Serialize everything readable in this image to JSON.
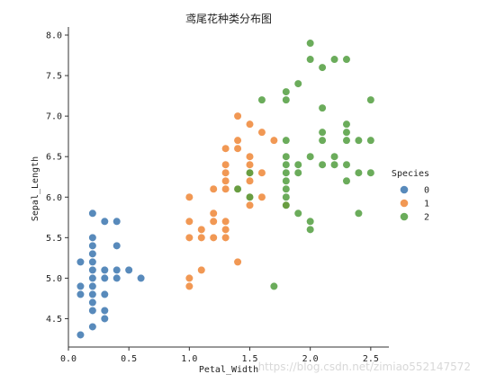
{
  "chart_data": {
    "type": "scatter",
    "title": "鸢尾花种类分布图",
    "xlabel": "Petal_Width",
    "ylabel": "Sepal_Length",
    "xlim": [
      0.0,
      2.65
    ],
    "ylim": [
      4.15,
      8.1
    ],
    "x_ticks": [
      "0.0",
      "0.5",
      "1.0",
      "1.5",
      "2.0",
      "2.5"
    ],
    "y_ticks": [
      "4.5",
      "5.0",
      "5.5",
      "6.0",
      "6.5",
      "7.0",
      "7.5",
      "8.0"
    ],
    "grid": false,
    "legend": {
      "title": "Species",
      "placement": "right"
    },
    "series": [
      {
        "name": "0",
        "color": "#3b75af",
        "points": [
          [
            0.1,
            4.3
          ],
          [
            0.1,
            4.8
          ],
          [
            0.1,
            4.9
          ],
          [
            0.1,
            5.2
          ],
          [
            0.2,
            4.4
          ],
          [
            0.2,
            4.6
          ],
          [
            0.2,
            4.7
          ],
          [
            0.2,
            4.8
          ],
          [
            0.2,
            4.9
          ],
          [
            0.2,
            5.0
          ],
          [
            0.2,
            5.1
          ],
          [
            0.2,
            5.2
          ],
          [
            0.2,
            5.3
          ],
          [
            0.2,
            5.4
          ],
          [
            0.2,
            5.5
          ],
          [
            0.2,
            5.8
          ],
          [
            0.3,
            4.5
          ],
          [
            0.3,
            4.6
          ],
          [
            0.3,
            4.8
          ],
          [
            0.3,
            5.0
          ],
          [
            0.3,
            5.1
          ],
          [
            0.3,
            5.7
          ],
          [
            0.4,
            5.0
          ],
          [
            0.4,
            5.1
          ],
          [
            0.4,
            5.4
          ],
          [
            0.4,
            5.7
          ],
          [
            0.5,
            5.1
          ],
          [
            0.6,
            5.0
          ]
        ]
      },
      {
        "name": "1",
        "color": "#ef8636",
        "points": [
          [
            1.0,
            4.9
          ],
          [
            1.0,
            5.0
          ],
          [
            1.0,
            5.5
          ],
          [
            1.0,
            5.7
          ],
          [
            1.0,
            6.0
          ],
          [
            1.1,
            5.1
          ],
          [
            1.1,
            5.5
          ],
          [
            1.1,
            5.6
          ],
          [
            1.2,
            5.5
          ],
          [
            1.2,
            5.7
          ],
          [
            1.2,
            5.8
          ],
          [
            1.2,
            6.1
          ],
          [
            1.3,
            5.5
          ],
          [
            1.3,
            5.6
          ],
          [
            1.3,
            5.7
          ],
          [
            1.3,
            6.6
          ],
          [
            1.3,
            6.3
          ],
          [
            1.3,
            6.4
          ],
          [
            1.3,
            6.2
          ],
          [
            1.3,
            6.1
          ],
          [
            1.4,
            5.2
          ],
          [
            1.4,
            6.1
          ],
          [
            1.4,
            6.6
          ],
          [
            1.4,
            6.7
          ],
          [
            1.4,
            7.0
          ],
          [
            1.5,
            5.9
          ],
          [
            1.5,
            6.0
          ],
          [
            1.5,
            6.2
          ],
          [
            1.5,
            6.3
          ],
          [
            1.5,
            6.4
          ],
          [
            1.5,
            6.5
          ],
          [
            1.5,
            6.9
          ],
          [
            1.6,
            6.0
          ],
          [
            1.6,
            6.3
          ],
          [
            1.6,
            6.8
          ],
          [
            1.7,
            6.7
          ],
          [
            1.8,
            5.9
          ]
        ]
      },
      {
        "name": "2",
        "color": "#519e3e",
        "points": [
          [
            1.4,
            6.1
          ],
          [
            1.5,
            6.0
          ],
          [
            1.5,
            6.3
          ],
          [
            1.6,
            7.2
          ],
          [
            1.7,
            4.9
          ],
          [
            1.8,
            5.9
          ],
          [
            1.8,
            6.0
          ],
          [
            1.8,
            6.1
          ],
          [
            1.8,
            6.2
          ],
          [
            1.8,
            6.3
          ],
          [
            1.8,
            6.4
          ],
          [
            1.8,
            6.5
          ],
          [
            1.8,
            6.7
          ],
          [
            1.8,
            7.2
          ],
          [
            1.8,
            7.3
          ],
          [
            1.9,
            5.8
          ],
          [
            1.9,
            6.3
          ],
          [
            1.9,
            6.4
          ],
          [
            1.9,
            7.4
          ],
          [
            2.0,
            5.6
          ],
          [
            2.0,
            5.7
          ],
          [
            2.0,
            6.5
          ],
          [
            2.0,
            7.7
          ],
          [
            2.0,
            7.9
          ],
          [
            2.1,
            6.4
          ],
          [
            2.1,
            6.7
          ],
          [
            2.1,
            6.8
          ],
          [
            2.1,
            7.1
          ],
          [
            2.1,
            7.6
          ],
          [
            2.2,
            6.4
          ],
          [
            2.2,
            6.5
          ],
          [
            2.2,
            7.7
          ],
          [
            2.3,
            6.2
          ],
          [
            2.3,
            6.4
          ],
          [
            2.3,
            6.7
          ],
          [
            2.3,
            6.8
          ],
          [
            2.3,
            6.9
          ],
          [
            2.3,
            7.7
          ],
          [
            2.4,
            5.8
          ],
          [
            2.4,
            6.3
          ],
          [
            2.4,
            6.7
          ],
          [
            2.5,
            6.3
          ],
          [
            2.5,
            6.7
          ],
          [
            2.5,
            7.2
          ]
        ]
      }
    ]
  },
  "watermark": "https://blog.csdn.net/zimiao552147572"
}
